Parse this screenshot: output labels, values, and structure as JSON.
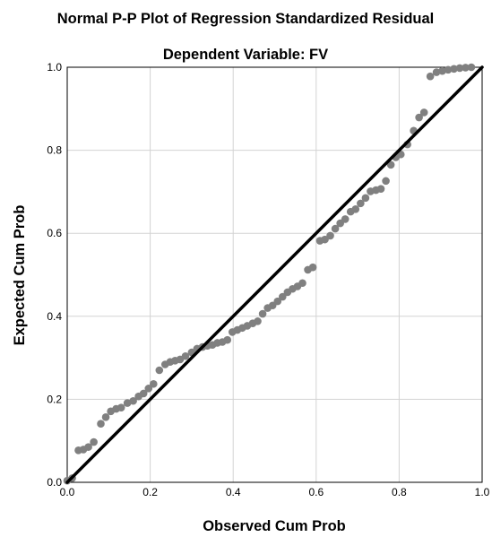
{
  "chart_data": {
    "type": "scatter",
    "title": "Normal P-P Plot of Regression Standardized Residual",
    "subtitle": "Dependent Variable: FV",
    "xlabel": "Observed Cum Prob",
    "ylabel": "Expected Cum Prob",
    "xlim": [
      0,
      1
    ],
    "ylim": [
      0,
      1
    ],
    "x_ticks": [
      "0.0",
      "0.2",
      "0.4",
      "0.6",
      "0.8",
      "1.0"
    ],
    "y_ticks": [
      "0.0",
      "0.2",
      "0.4",
      "0.6",
      "0.8",
      "1.0"
    ],
    "grid": true,
    "reference_line": {
      "x": [
        0,
        1
      ],
      "y": [
        0,
        1
      ]
    },
    "colors": {
      "points": "#808080",
      "reference_line": "#000000",
      "grid": "#d3d3d3"
    },
    "points": [
      [
        0.0,
        0.004
      ],
      [
        0.012,
        0.01
      ],
      [
        0.027,
        0.077
      ],
      [
        0.039,
        0.079
      ],
      [
        0.051,
        0.085
      ],
      [
        0.064,
        0.097
      ],
      [
        0.081,
        0.141
      ],
      [
        0.093,
        0.157
      ],
      [
        0.105,
        0.171
      ],
      [
        0.118,
        0.177
      ],
      [
        0.13,
        0.18
      ],
      [
        0.145,
        0.191
      ],
      [
        0.159,
        0.196
      ],
      [
        0.172,
        0.207
      ],
      [
        0.184,
        0.214
      ],
      [
        0.196,
        0.226
      ],
      [
        0.208,
        0.237
      ],
      [
        0.222,
        0.27
      ],
      [
        0.236,
        0.284
      ],
      [
        0.248,
        0.29
      ],
      [
        0.26,
        0.293
      ],
      [
        0.272,
        0.296
      ],
      [
        0.285,
        0.304
      ],
      [
        0.3,
        0.313
      ],
      [
        0.313,
        0.322
      ],
      [
        0.326,
        0.326
      ],
      [
        0.338,
        0.329
      ],
      [
        0.35,
        0.331
      ],
      [
        0.362,
        0.336
      ],
      [
        0.374,
        0.338
      ],
      [
        0.386,
        0.343
      ],
      [
        0.398,
        0.362
      ],
      [
        0.41,
        0.367
      ],
      [
        0.422,
        0.372
      ],
      [
        0.434,
        0.377
      ],
      [
        0.447,
        0.383
      ],
      [
        0.459,
        0.388
      ],
      [
        0.471,
        0.406
      ],
      [
        0.483,
        0.42
      ],
      [
        0.495,
        0.426
      ],
      [
        0.507,
        0.436
      ],
      [
        0.519,
        0.447
      ],
      [
        0.531,
        0.458
      ],
      [
        0.543,
        0.466
      ],
      [
        0.555,
        0.472
      ],
      [
        0.567,
        0.48
      ],
      [
        0.58,
        0.512
      ],
      [
        0.592,
        0.518
      ],
      [
        0.609,
        0.582
      ],
      [
        0.621,
        0.585
      ],
      [
        0.634,
        0.594
      ],
      [
        0.646,
        0.611
      ],
      [
        0.658,
        0.624
      ],
      [
        0.67,
        0.634
      ],
      [
        0.683,
        0.652
      ],
      [
        0.695,
        0.658
      ],
      [
        0.707,
        0.672
      ],
      [
        0.719,
        0.685
      ],
      [
        0.731,
        0.701
      ],
      [
        0.744,
        0.704
      ],
      [
        0.756,
        0.707
      ],
      [
        0.768,
        0.726
      ],
      [
        0.78,
        0.765
      ],
      [
        0.792,
        0.783
      ],
      [
        0.804,
        0.79
      ],
      [
        0.82,
        0.814
      ],
      [
        0.835,
        0.847
      ],
      [
        0.848,
        0.879
      ],
      [
        0.86,
        0.891
      ],
      [
        0.875,
        0.978
      ],
      [
        0.89,
        0.988
      ],
      [
        0.904,
        0.991
      ],
      [
        0.918,
        0.994
      ],
      [
        0.932,
        0.996
      ],
      [
        0.946,
        0.998
      ],
      [
        0.96,
        0.999
      ],
      [
        0.974,
        1.0
      ]
    ]
  }
}
